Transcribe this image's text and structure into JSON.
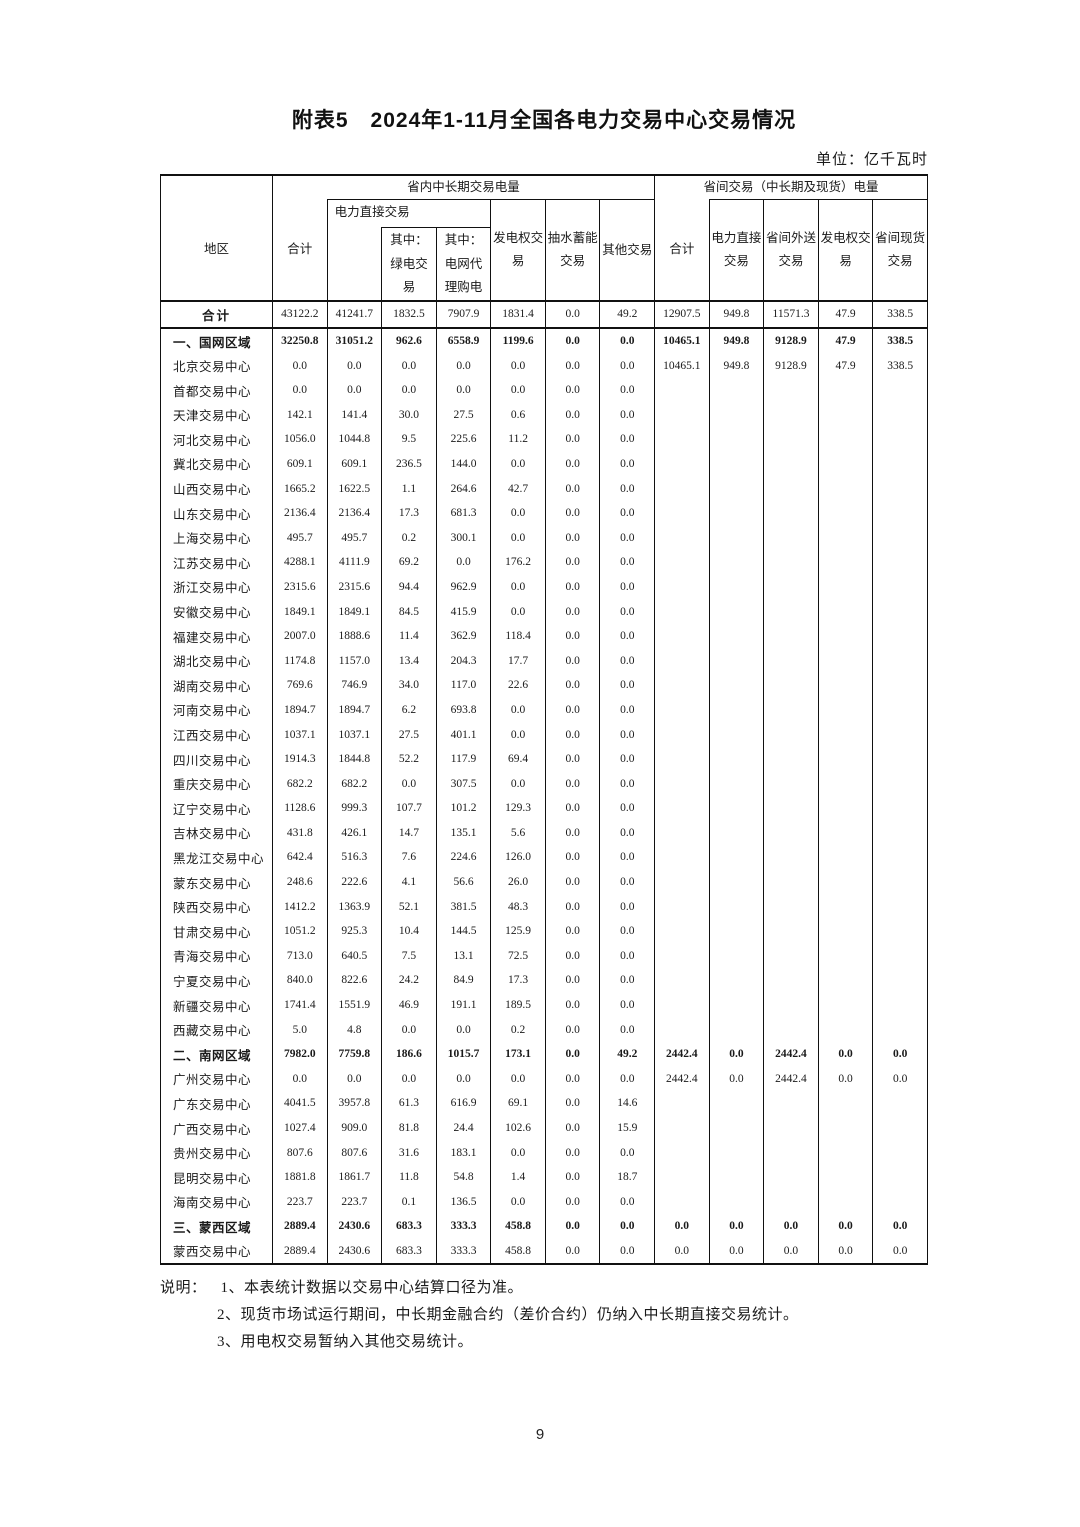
{
  "page": {
    "title": "附表5　2024年1-11月全国各电力交易中心交易情况",
    "unit_label": "单位：亿千瓦时",
    "page_number": "9"
  },
  "table": {
    "header": {
      "region": "地区",
      "group_in_province": "省内中长期交易电量",
      "group_inter_province": "省间交易（中长期及现货）电量",
      "col_total_in": "合计",
      "col_direct_trade": "电力直接交易",
      "col_green": "其中：绿电交易",
      "col_grid_agent": "其中：电网代理购电",
      "col_gen_rights_in": "发电权交易",
      "col_pumped_storage": "抽水蓄能交易",
      "col_other": "其他交易",
      "col_total_inter": "合计",
      "col_direct_inter": "电力直接交易",
      "col_outbound": "省间外送交易",
      "col_gen_rights_inter": "发电权交易",
      "col_spot_inter": "省间现货交易"
    },
    "rows": [
      {
        "label": "合计",
        "type": "total",
        "values": [
          "43122.2",
          "41241.7",
          "1832.5",
          "7907.9",
          "1831.4",
          "0.0",
          "49.2",
          "12907.5",
          "949.8",
          "11571.3",
          "47.9",
          "338.5"
        ]
      },
      {
        "label": "一、国网区域",
        "type": "region",
        "values": [
          "32250.8",
          "31051.2",
          "962.6",
          "6558.9",
          "1199.6",
          "0.0",
          "0.0",
          "10465.1",
          "949.8",
          "9128.9",
          "47.9",
          "338.5"
        ]
      },
      {
        "label": "北京交易中心",
        "type": "center",
        "values": [
          "0.0",
          "0.0",
          "0.0",
          "0.0",
          "0.0",
          "0.0",
          "0.0",
          "10465.1",
          "949.8",
          "9128.9",
          "47.9",
          "338.5"
        ]
      },
      {
        "label": "首都交易中心",
        "type": "center",
        "values": [
          "0.0",
          "0.0",
          "0.0",
          "0.0",
          "0.0",
          "0.0",
          "0.0",
          "",
          "",
          "",
          "",
          ""
        ]
      },
      {
        "label": "天津交易中心",
        "type": "center",
        "values": [
          "142.1",
          "141.4",
          "30.0",
          "27.5",
          "0.6",
          "0.0",
          "0.0",
          "",
          "",
          "",
          "",
          ""
        ]
      },
      {
        "label": "河北交易中心",
        "type": "center",
        "values": [
          "1056.0",
          "1044.8",
          "9.5",
          "225.6",
          "11.2",
          "0.0",
          "0.0",
          "",
          "",
          "",
          "",
          ""
        ]
      },
      {
        "label": "冀北交易中心",
        "type": "center",
        "values": [
          "609.1",
          "609.1",
          "236.5",
          "144.0",
          "0.0",
          "0.0",
          "0.0",
          "",
          "",
          "",
          "",
          ""
        ]
      },
      {
        "label": "山西交易中心",
        "type": "center",
        "values": [
          "1665.2",
          "1622.5",
          "1.1",
          "264.6",
          "42.7",
          "0.0",
          "0.0",
          "",
          "",
          "",
          "",
          ""
        ]
      },
      {
        "label": "山东交易中心",
        "type": "center",
        "values": [
          "2136.4",
          "2136.4",
          "17.3",
          "681.3",
          "0.0",
          "0.0",
          "0.0",
          "",
          "",
          "",
          "",
          ""
        ]
      },
      {
        "label": "上海交易中心",
        "type": "center",
        "values": [
          "495.7",
          "495.7",
          "0.2",
          "300.1",
          "0.0",
          "0.0",
          "0.0",
          "",
          "",
          "",
          "",
          ""
        ]
      },
      {
        "label": "江苏交易中心",
        "type": "center",
        "values": [
          "4288.1",
          "4111.9",
          "69.2",
          "0.0",
          "176.2",
          "0.0",
          "0.0",
          "",
          "",
          "",
          "",
          ""
        ]
      },
      {
        "label": "浙江交易中心",
        "type": "center",
        "values": [
          "2315.6",
          "2315.6",
          "94.4",
          "962.9",
          "0.0",
          "0.0",
          "0.0",
          "",
          "",
          "",
          "",
          ""
        ]
      },
      {
        "label": "安徽交易中心",
        "type": "center",
        "values": [
          "1849.1",
          "1849.1",
          "84.5",
          "415.9",
          "0.0",
          "0.0",
          "0.0",
          "",
          "",
          "",
          "",
          ""
        ]
      },
      {
        "label": "福建交易中心",
        "type": "center",
        "values": [
          "2007.0",
          "1888.6",
          "11.4",
          "362.9",
          "118.4",
          "0.0",
          "0.0",
          "",
          "",
          "",
          "",
          ""
        ]
      },
      {
        "label": "湖北交易中心",
        "type": "center",
        "values": [
          "1174.8",
          "1157.0",
          "13.4",
          "204.3",
          "17.7",
          "0.0",
          "0.0",
          "",
          "",
          "",
          "",
          ""
        ]
      },
      {
        "label": "湖南交易中心",
        "type": "center",
        "values": [
          "769.6",
          "746.9",
          "34.0",
          "117.0",
          "22.6",
          "0.0",
          "0.0",
          "",
          "",
          "",
          "",
          ""
        ]
      },
      {
        "label": "河南交易中心",
        "type": "center",
        "values": [
          "1894.7",
          "1894.7",
          "6.2",
          "693.8",
          "0.0",
          "0.0",
          "0.0",
          "",
          "",
          "",
          "",
          ""
        ]
      },
      {
        "label": "江西交易中心",
        "type": "center",
        "values": [
          "1037.1",
          "1037.1",
          "27.5",
          "401.1",
          "0.0",
          "0.0",
          "0.0",
          "",
          "",
          "",
          "",
          ""
        ]
      },
      {
        "label": "四川交易中心",
        "type": "center",
        "values": [
          "1914.3",
          "1844.8",
          "52.2",
          "117.9",
          "69.4",
          "0.0",
          "0.0",
          "",
          "",
          "",
          "",
          ""
        ]
      },
      {
        "label": "重庆交易中心",
        "type": "center",
        "values": [
          "682.2",
          "682.2",
          "0.0",
          "307.5",
          "0.0",
          "0.0",
          "0.0",
          "",
          "",
          "",
          "",
          ""
        ]
      },
      {
        "label": "辽宁交易中心",
        "type": "center",
        "values": [
          "1128.6",
          "999.3",
          "107.7",
          "101.2",
          "129.3",
          "0.0",
          "0.0",
          "",
          "",
          "",
          "",
          ""
        ]
      },
      {
        "label": "吉林交易中心",
        "type": "center",
        "values": [
          "431.8",
          "426.1",
          "14.7",
          "135.1",
          "5.6",
          "0.0",
          "0.0",
          "",
          "",
          "",
          "",
          ""
        ]
      },
      {
        "label": "黑龙江交易中心",
        "type": "center",
        "values": [
          "642.4",
          "516.3",
          "7.6",
          "224.6",
          "126.0",
          "0.0",
          "0.0",
          "",
          "",
          "",
          "",
          ""
        ]
      },
      {
        "label": "蒙东交易中心",
        "type": "center",
        "values": [
          "248.6",
          "222.6",
          "4.1",
          "56.6",
          "26.0",
          "0.0",
          "0.0",
          "",
          "",
          "",
          "",
          ""
        ]
      },
      {
        "label": "陕西交易中心",
        "type": "center",
        "values": [
          "1412.2",
          "1363.9",
          "52.1",
          "381.5",
          "48.3",
          "0.0",
          "0.0",
          "",
          "",
          "",
          "",
          ""
        ]
      },
      {
        "label": "甘肃交易中心",
        "type": "center",
        "values": [
          "1051.2",
          "925.3",
          "10.4",
          "144.5",
          "125.9",
          "0.0",
          "0.0",
          "",
          "",
          "",
          "",
          ""
        ]
      },
      {
        "label": "青海交易中心",
        "type": "center",
        "values": [
          "713.0",
          "640.5",
          "7.5",
          "13.1",
          "72.5",
          "0.0",
          "0.0",
          "",
          "",
          "",
          "",
          ""
        ]
      },
      {
        "label": "宁夏交易中心",
        "type": "center",
        "values": [
          "840.0",
          "822.6",
          "24.2",
          "84.9",
          "17.3",
          "0.0",
          "0.0",
          "",
          "",
          "",
          "",
          ""
        ]
      },
      {
        "label": "新疆交易中心",
        "type": "center",
        "values": [
          "1741.4",
          "1551.9",
          "46.9",
          "191.1",
          "189.5",
          "0.0",
          "0.0",
          "",
          "",
          "",
          "",
          ""
        ]
      },
      {
        "label": "西藏交易中心",
        "type": "center",
        "values": [
          "5.0",
          "4.8",
          "0.0",
          "0.0",
          "0.2",
          "0.0",
          "0.0",
          "",
          "",
          "",
          "",
          ""
        ]
      },
      {
        "label": "二、南网区域",
        "type": "region",
        "values": [
          "7982.0",
          "7759.8",
          "186.6",
          "1015.7",
          "173.1",
          "0.0",
          "49.2",
          "2442.4",
          "0.0",
          "2442.4",
          "0.0",
          "0.0"
        ]
      },
      {
        "label": "广州交易中心",
        "type": "center",
        "values": [
          "0.0",
          "0.0",
          "0.0",
          "0.0",
          "0.0",
          "0.0",
          "0.0",
          "2442.4",
          "0.0",
          "2442.4",
          "0.0",
          "0.0"
        ]
      },
      {
        "label": "广东交易中心",
        "type": "center",
        "values": [
          "4041.5",
          "3957.8",
          "61.3",
          "616.9",
          "69.1",
          "0.0",
          "14.6",
          "",
          "",
          "",
          "",
          ""
        ]
      },
      {
        "label": "广西交易中心",
        "type": "center",
        "values": [
          "1027.4",
          "909.0",
          "81.8",
          "24.4",
          "102.6",
          "0.0",
          "15.9",
          "",
          "",
          "",
          "",
          ""
        ]
      },
      {
        "label": "贵州交易中心",
        "type": "center",
        "values": [
          "807.6",
          "807.6",
          "31.6",
          "183.1",
          "0.0",
          "0.0",
          "0.0",
          "",
          "",
          "",
          "",
          ""
        ]
      },
      {
        "label": "昆明交易中心",
        "type": "center",
        "values": [
          "1881.8",
          "1861.7",
          "11.8",
          "54.8",
          "1.4",
          "0.0",
          "18.7",
          "",
          "",
          "",
          "",
          ""
        ]
      },
      {
        "label": "海南交易中心",
        "type": "center",
        "values": [
          "223.7",
          "223.7",
          "0.1",
          "136.5",
          "0.0",
          "0.0",
          "0.0",
          "",
          "",
          "",
          "",
          ""
        ]
      },
      {
        "label": "三、蒙西区域",
        "type": "region",
        "values": [
          "2889.4",
          "2430.6",
          "683.3",
          "333.3",
          "458.8",
          "0.0",
          "0.0",
          "0.0",
          "0.0",
          "0.0",
          "0.0",
          "0.0"
        ]
      },
      {
        "label": "蒙西交易中心",
        "type": "center",
        "values": [
          "2889.4",
          "2430.6",
          "683.3",
          "333.3",
          "458.8",
          "0.0",
          "0.0",
          "0.0",
          "0.0",
          "0.0",
          "0.0",
          "0.0"
        ]
      }
    ]
  },
  "notes": {
    "prefix": "说明：",
    "items": [
      "1、本表统计数据以交易中心结算口径为准。",
      "2、现货市场试运行期间，中长期金融合约（差价合约）仍纳入中长期直接交易统计。",
      "3、用电权交易暂纳入其他交易统计。"
    ]
  }
}
